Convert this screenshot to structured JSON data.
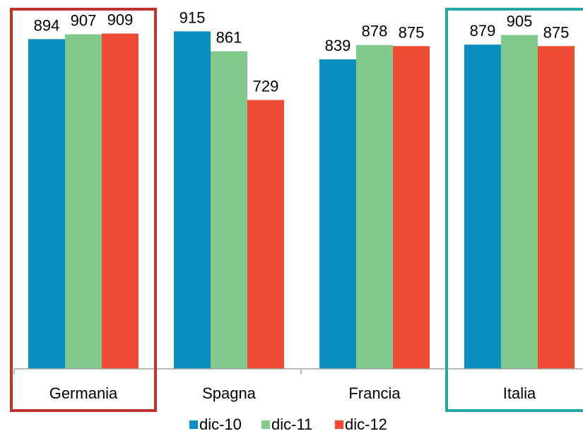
{
  "chart_data": {
    "type": "bar",
    "categories": [
      "Germania",
      "Spagna",
      "Francia",
      "Italia"
    ],
    "series": [
      {
        "name": "dic-10",
        "color": "#0a8fc0",
        "values": [
          894,
          915,
          839,
          879
        ]
      },
      {
        "name": "dic-11",
        "color": "#82c98c",
        "values": [
          907,
          861,
          878,
          905
        ]
      },
      {
        "name": "dic-12",
        "color": "#f04b32",
        "values": [
          909,
          729,
          875,
          875
        ]
      }
    ],
    "ylim": [
      0,
      1000
    ],
    "grid": false,
    "legend": "bottom",
    "highlights": [
      {
        "category": "Germania",
        "color": "#c0332a"
      },
      {
        "category": "Italia",
        "color": "#26a6a6"
      }
    ]
  }
}
